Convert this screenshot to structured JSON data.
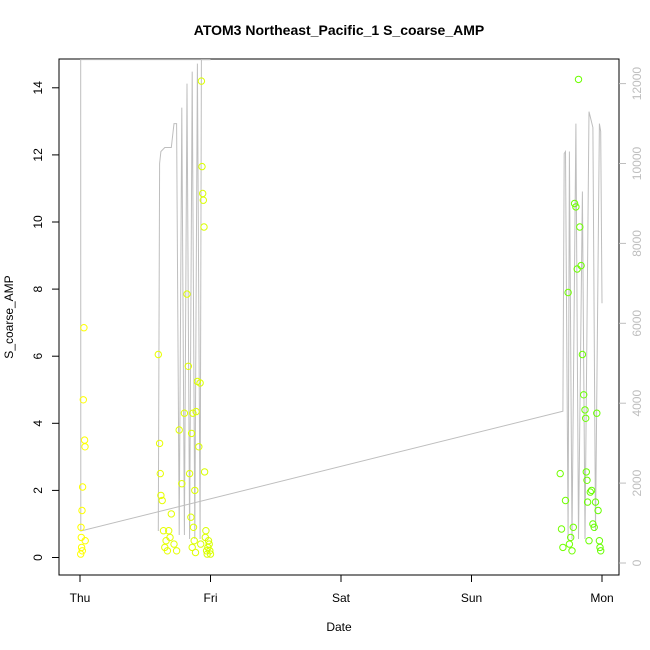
{
  "chart_data": {
    "type": "scatter",
    "title": "ATOM3 Northeast_Pacific_1 S_coarse_AMP",
    "xlabel": "Date",
    "ylabel": "S_coarse_AMP",
    "x_ticks": [
      "Thu",
      "Fri",
      "Sat",
      "Sun",
      "Mon"
    ],
    "x_range_days": [
      0,
      4
    ],
    "ylim": [
      0,
      14
    ],
    "y_ticks": [
      "0",
      "2",
      "4",
      "6",
      "8",
      "10",
      "12",
      "14"
    ],
    "y2lim": [
      0,
      12000
    ],
    "y2_ticks": [
      "0",
      "2000",
      "4000",
      "6000",
      "8000",
      "10000",
      "12000"
    ],
    "colors": {
      "points_start": "#ffff00",
      "points_end": "#66ff00",
      "line": "#bebebe"
    },
    "series": [
      {
        "kind": "points",
        "x_day": [
          0.005,
          0.008,
          0.01,
          0.012,
          0.015,
          0.018,
          0.02,
          0.025,
          0.03,
          0.035,
          0.038,
          0.04,
          0.6,
          0.61,
          0.615,
          0.62,
          0.63,
          0.64,
          0.65,
          0.66,
          0.67,
          0.68,
          0.69,
          0.7,
          0.72,
          0.74,
          0.76,
          0.78,
          0.8,
          0.82,
          0.83,
          0.84,
          0.85,
          0.855,
          0.86,
          0.865,
          0.87,
          0.875,
          0.88,
          0.885,
          0.89,
          0.9,
          0.91,
          0.92,
          0.925,
          0.93,
          0.935,
          0.94,
          0.945,
          0.95,
          0.955,
          0.96,
          0.965,
          0.97,
          0.975,
          0.98,
          0.985,
          0.99,
          0.995,
          1.0,
          3.68,
          3.69,
          3.7,
          3.72,
          3.74,
          3.75,
          3.76,
          3.77,
          3.78,
          3.79,
          3.8,
          3.81,
          3.82,
          3.83,
          3.84,
          3.85,
          3.86,
          3.87,
          3.875,
          3.88,
          3.885,
          3.89,
          3.9,
          3.91,
          3.92,
          3.93,
          3.94,
          3.95,
          3.96,
          3.97,
          3.98,
          3.985,
          3.99
        ],
        "y": [
          0.1,
          0.9,
          0.6,
          0.3,
          1.4,
          0.2,
          2.1,
          4.7,
          6.85,
          3.5,
          3.3,
          0.5,
          6.05,
          3.4,
          2.5,
          1.85,
          1.7,
          0.8,
          0.3,
          0.5,
          0.2,
          0.8,
          0.6,
          1.3,
          0.4,
          0.2,
          3.8,
          2.2,
          4.3,
          7.85,
          5.7,
          2.5,
          1.2,
          3.7,
          0.3,
          4.3,
          0.9,
          0.5,
          2.0,
          0.15,
          4.35,
          5.25,
          3.3,
          5.2,
          0.4,
          14.2,
          11.65,
          10.85,
          10.65,
          9.85,
          2.55,
          0.6,
          0.8,
          0.2,
          0.1,
          0.3,
          0.5,
          0.4,
          0.2,
          0.1,
          2.5,
          0.85,
          0.3,
          1.7,
          7.9,
          0.4,
          0.6,
          0.2,
          0.9,
          10.55,
          10.45,
          8.6,
          14.25,
          9.85,
          8.7,
          6.05,
          4.85,
          4.4,
          4.15,
          2.55,
          2.3,
          1.65,
          0.5,
          1.95,
          2.0,
          1.0,
          0.9,
          1.65,
          4.3,
          1.4,
          0.5,
          0.3,
          0.2
        ]
      },
      {
        "kind": "line",
        "axis": "right",
        "x_day": [
          0.0,
          0.005,
          0.006,
          0.9,
          0.915,
          0.925,
          0.92,
          0.93,
          0.94,
          0.945,
          0.95,
          0.955,
          0.96,
          0.965,
          0.97,
          0.975,
          0.98,
          0.985,
          0.99,
          0.995,
          1.0,
          1.01,
          1.02,
          0.01,
          0.02,
          3.7,
          3.71,
          3.72,
          3.74,
          3.75,
          3.77,
          3.8,
          3.82,
          3.85,
          3.87,
          3.9,
          3.93,
          3.95,
          3.98,
          3.99,
          4.0
        ],
        "y2": [
          12600,
          12600,
          800,
          12600,
          12600,
          12600,
          12600,
          12600,
          12600,
          12600,
          12600,
          12600,
          12600,
          12600,
          12600,
          12600,
          12600,
          12600,
          12600,
          12600,
          12600,
          12600,
          12600,
          800,
          800,
          3800,
          10250,
          10300,
          600,
          10300,
          600,
          11000,
          600,
          9300,
          600,
          11300,
          10900,
          800,
          11000,
          10800,
          6500
        ]
      }
    ]
  }
}
